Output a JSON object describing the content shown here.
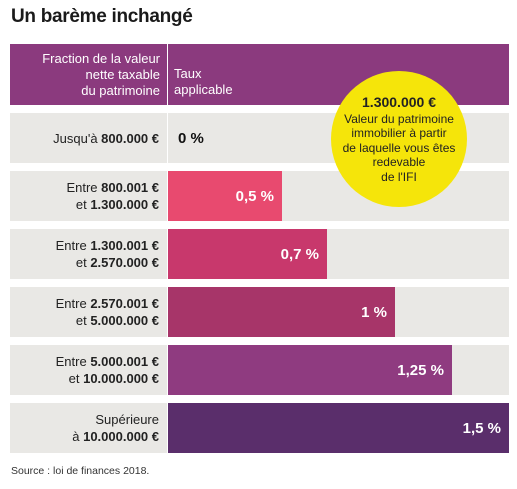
{
  "title": "Un barème inchangé",
  "header": {
    "left": [
      "Fraction de la valeur",
      "nette taxable",
      "du patrimoine"
    ],
    "right": [
      "Taux",
      "applicable"
    ]
  },
  "callout": {
    "amount": "1.300.000 €",
    "text": [
      "Valeur du patrimoine",
      "immobilier à partir",
      "de laquelle vous êtes",
      "redevable",
      "de l'IFI"
    ]
  },
  "source": "Source : loi de finances 2018.",
  "colors": [
    "#e9e8e5",
    "#e84a6f",
    "#c8386c",
    "#a73569",
    "#8f3b80",
    "#5a2e6b"
  ],
  "chart_data": {
    "type": "bar",
    "orientation": "horizontal",
    "categories": [
      "Jusqu'à 800.000 €",
      "Entre 800.001 € et 1.300.000 €",
      "Entre 1.300.001 € et 2.570.000 €",
      "Entre 2.570.001 € et 5.000.000 €",
      "Entre 5.000.001 € et 10.000.000 €",
      "Supérieure à 10.000.000 €"
    ],
    "rows": [
      {
        "pre": "Jusqu'à ",
        "a": "800.000 €",
        "mid": "",
        "b": ""
      },
      {
        "pre": "Entre ",
        "a": "800.001 €",
        "mid": "et ",
        "b": "1.300.000 €"
      },
      {
        "pre": "Entre ",
        "a": "1.300.001 €",
        "mid": "et ",
        "b": "2.570.000 €"
      },
      {
        "pre": "Entre ",
        "a": "2.570.001 €",
        "mid": "et ",
        "b": "5.000.000 €"
      },
      {
        "pre": "Entre ",
        "a": "5.000.001 €",
        "mid": "et ",
        "b": "10.000.000 €"
      },
      {
        "pre": "Supérieure",
        "a": "",
        "mid": "à ",
        "b": "10.000.000 €"
      }
    ],
    "values": [
      0,
      0.5,
      0.7,
      1,
      1.25,
      1.5
    ],
    "labels": [
      "0 %",
      "0,5 %",
      "0,7 %",
      "1 %",
      "1,25 %",
      "1,5 %"
    ],
    "xlim": [
      0,
      1.5
    ]
  }
}
